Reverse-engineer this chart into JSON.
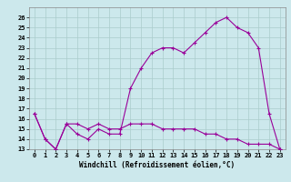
{
  "xlabel": "Windchill (Refroidissement éolien,°C)",
  "background_color": "#cce8ec",
  "line_color": "#990099",
  "grid_color": "#aacccc",
  "xlim": [
    -0.5,
    23.5
  ],
  "ylim": [
    13,
    27
  ],
  "yticks": [
    13,
    14,
    15,
    16,
    17,
    18,
    19,
    20,
    21,
    22,
    23,
    24,
    25,
    26
  ],
  "xticks": [
    0,
    1,
    2,
    3,
    4,
    5,
    6,
    7,
    8,
    9,
    10,
    11,
    12,
    13,
    14,
    15,
    16,
    17,
    18,
    19,
    20,
    21,
    22,
    23
  ],
  "line1_x": [
    0,
    1,
    2,
    3,
    4,
    5,
    6,
    7,
    8,
    9,
    10,
    11,
    12,
    13,
    14,
    15,
    16,
    17,
    18,
    19,
    20,
    21,
    22,
    23
  ],
  "line1_y": [
    16.5,
    14.0,
    13.0,
    15.5,
    14.5,
    14.0,
    15.0,
    14.5,
    14.5,
    19.0,
    21.0,
    22.5,
    23.0,
    23.0,
    22.5,
    23.5,
    24.5,
    25.5,
    26.0,
    25.0,
    24.5,
    23.0,
    16.5,
    13.0
  ],
  "line2_x": [
    0,
    1,
    2,
    3,
    4,
    5,
    6,
    7,
    8,
    9,
    10,
    11,
    12,
    13,
    14,
    15,
    16,
    17,
    18,
    19,
    20,
    21,
    22,
    23
  ],
  "line2_y": [
    16.5,
    14.0,
    13.0,
    15.5,
    15.5,
    15.0,
    15.5,
    15.0,
    15.0,
    15.5,
    15.5,
    15.5,
    15.0,
    15.0,
    15.0,
    15.0,
    14.5,
    14.5,
    14.0,
    14.0,
    13.5,
    13.5,
    13.5,
    13.0
  ],
  "xlabel_fontsize": 5.5,
  "tick_fontsize": 5.0,
  "linewidth": 0.8,
  "markersize": 3.0
}
